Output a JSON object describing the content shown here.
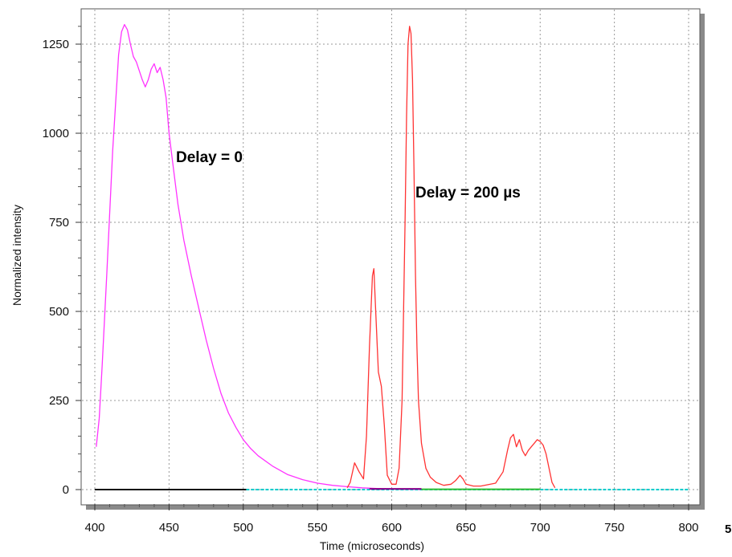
{
  "chart_data": {
    "type": "line",
    "title": "",
    "xlabel": "Time (microseconds)",
    "ylabel": "Normalized intensity",
    "xlim": [
      400,
      800
    ],
    "ylim": [
      0,
      1350
    ],
    "x_ticks": [
      "400",
      "450",
      "500",
      "550",
      "600",
      "650",
      "700",
      "750",
      "800"
    ],
    "y_ticks": [
      "0",
      "250",
      "500",
      "750",
      "1000",
      "1250"
    ],
    "grid": true,
    "legend": "none",
    "annotations": [
      {
        "text": "Delay = 0",
        "x": 455,
        "y": 930
      },
      {
        "text": "Delay = 200 µs",
        "x": 615,
        "y": 830
      }
    ],
    "cutoff_text": "5",
    "series": [
      {
        "color": "#ff33ff",
        "x": [
          401,
          403,
          405,
          408,
          412,
          416,
          418,
          420,
          422,
          424,
          426,
          428,
          430,
          432,
          434,
          436,
          438,
          440,
          442,
          444,
          446,
          448,
          450,
          453,
          456,
          460,
          465,
          470,
          475,
          480,
          485,
          490,
          495,
          500,
          505,
          510,
          520,
          530,
          540,
          550,
          560,
          570,
          580,
          590,
          600,
          610,
          620
        ],
        "y": [
          120,
          200,
          350,
          600,
          950,
          1220,
          1285,
          1305,
          1290,
          1250,
          1215,
          1200,
          1175,
          1150,
          1130,
          1150,
          1180,
          1195,
          1170,
          1185,
          1150,
          1100,
          1000,
          900,
          800,
          700,
          600,
          510,
          420,
          340,
          270,
          215,
          175,
          140,
          115,
          95,
          65,
          42,
          28,
          18,
          12,
          8,
          5,
          3,
          2,
          1,
          0
        ]
      },
      {
        "color": "#ff3333",
        "x": [
          570,
          572,
          575,
          578,
          581,
          583,
          585,
          587,
          588,
          589,
          591,
          593,
          595,
          597,
          600,
          603,
          605,
          607,
          609,
          610,
          611,
          612,
          613,
          614,
          615,
          616,
          617,
          618,
          620,
          623,
          626,
          630,
          635,
          640,
          643,
          646,
          648,
          650,
          655,
          660,
          670,
          675,
          678,
          680,
          682,
          684,
          686,
          688,
          690,
          692,
          694,
          696,
          698,
          700,
          702,
          704,
          706,
          708,
          710
        ],
        "y": [
          5,
          20,
          75,
          50,
          30,
          150,
          400,
          600,
          620,
          520,
          330,
          290,
          180,
          40,
          15,
          15,
          60,
          250,
          750,
          1050,
          1250,
          1300,
          1280,
          1150,
          900,
          600,
          400,
          250,
          130,
          60,
          35,
          20,
          12,
          15,
          25,
          40,
          30,
          15,
          10,
          10,
          18,
          50,
          110,
          145,
          155,
          120,
          140,
          110,
          95,
          110,
          120,
          130,
          140,
          135,
          125,
          100,
          60,
          20,
          5
        ]
      },
      {
        "color": "#00cccc",
        "x": [
          502,
          800
        ],
        "y": [
          0,
          0
        ]
      },
      {
        "color": "#33bb33",
        "x": [
          620,
          700
        ],
        "y": [
          1,
          1
        ]
      },
      {
        "color": "#880088",
        "x": [
          585,
          620
        ],
        "y": [
          2,
          2
        ]
      },
      {
        "color": "#111111",
        "x": [
          400,
          502
        ],
        "y": [
          0,
          0
        ]
      }
    ]
  }
}
